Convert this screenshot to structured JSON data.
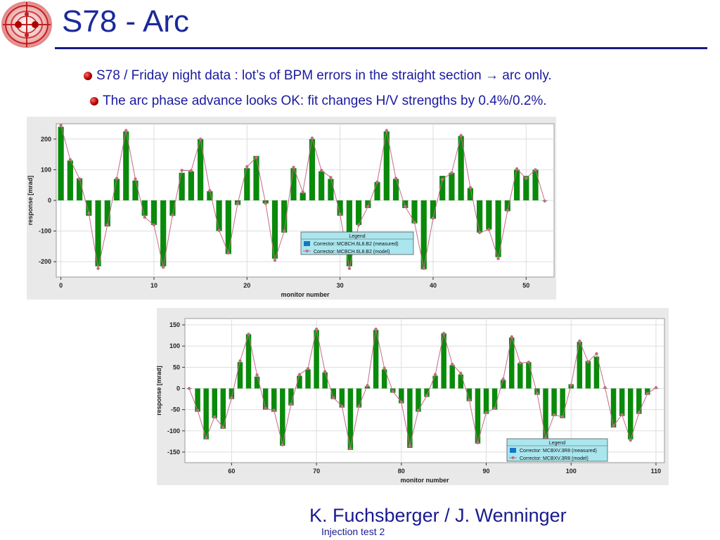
{
  "slide": {
    "title": "S78 - Arc",
    "bullets": [
      "S78 / Friday night data : lot’s of BPM errors in the straight section → arc only.",
      "The arc phase advance looks OK: fit changes H/V strengths by 0.4%/0.2%."
    ],
    "author": "K. Fuchsberger / J. Wenninger",
    "footer": "Injection test 2",
    "accent_color": "#1a2a9a",
    "logo_icon": "lhc-ring-logo"
  },
  "chart_data": [
    {
      "type": "bar",
      "xlabel": "monitor number",
      "ylabel": "response [mrad]",
      "xlim": [
        -0.5,
        53
      ],
      "ylim": [
        -250,
        250
      ],
      "xticks": [
        0,
        10,
        20,
        30,
        40,
        50
      ],
      "yticks": [
        -200,
        -100,
        0,
        100,
        200
      ],
      "grid": true,
      "legend_placement": "center-right",
      "legend_title": "Legend",
      "colors": {
        "bar": "#0a8a0a",
        "model": "#c46a88",
        "legend_bg": "#a9e6ee"
      },
      "x": [
        0,
        1,
        2,
        3,
        4,
        5,
        6,
        7,
        8,
        9,
        10,
        11,
        12,
        13,
        14,
        15,
        16,
        17,
        18,
        19,
        20,
        21,
        22,
        23,
        24,
        25,
        26,
        27,
        28,
        29,
        30,
        31,
        32,
        33,
        34,
        35,
        36,
        37,
        38,
        39,
        40,
        41,
        42,
        43,
        44,
        45,
        46,
        47,
        48,
        49,
        50,
        51,
        52
      ],
      "series": [
        {
          "name": "Corrector: MCBCH.6L8.B2 (measured)",
          "kind": "bar",
          "values": [
            240,
            130,
            72,
            -50,
            -215,
            -85,
            70,
            225,
            65,
            -50,
            -80,
            -215,
            -50,
            90,
            95,
            200,
            30,
            -100,
            -175,
            -15,
            105,
            145,
            -10,
            -190,
            -105,
            105,
            25,
            200,
            95,
            70,
            -50,
            -215,
            -80,
            -25,
            60,
            225,
            70,
            -25,
            -75,
            -225,
            -60,
            80,
            90,
            210,
            40,
            -105,
            -95,
            -185,
            -35,
            100,
            80,
            100,
            0
          ]
        },
        {
          "name": "Corrector: MCBCH.6L8.B2 (model)",
          "kind": "line",
          "values": [
            245,
            133,
            70,
            -42,
            -222,
            -80,
            72,
            228,
            70,
            -55,
            -80,
            -218,
            -48,
            98,
            97,
            200,
            32,
            -98,
            -172,
            -10,
            110,
            140,
            -10,
            -195,
            -100,
            108,
            27,
            203,
            98,
            75,
            -45,
            -222,
            -80,
            -20,
            60,
            228,
            72,
            -20,
            -72,
            -222,
            -58,
            68,
            90,
            212,
            42,
            -105,
            -95,
            -190,
            -33,
            103,
            72,
            100,
            -2
          ]
        }
      ]
    },
    {
      "type": "bar",
      "xlabel": "monitor number",
      "ylabel": "response [mrad]",
      "xlim": [
        54.5,
        111
      ],
      "ylim": [
        -175,
        165
      ],
      "xticks": [
        60,
        70,
        80,
        90,
        100,
        110
      ],
      "yticks": [
        -150,
        -100,
        -50,
        0,
        50,
        100,
        150
      ],
      "grid": true,
      "legend_placement": "bottom-right",
      "legend_title": "Legend",
      "colors": {
        "bar": "#0a8a0a",
        "model": "#c46a88",
        "legend_bg": "#a9e6ee"
      },
      "x": [
        55,
        56,
        57,
        58,
        59,
        60,
        61,
        62,
        63,
        64,
        65,
        66,
        67,
        68,
        69,
        70,
        71,
        72,
        73,
        74,
        75,
        76,
        77,
        78,
        79,
        80,
        81,
        82,
        83,
        84,
        85,
        86,
        87,
        88,
        89,
        90,
        91,
        92,
        93,
        94,
        95,
        96,
        97,
        98,
        99,
        100,
        101,
        102,
        103,
        104,
        105,
        106,
        107,
        108,
        109,
        110
      ],
      "series": [
        {
          "name": "Corrector: MCBXV.3R8 (measured)",
          "kind": "bar",
          "values": [
            0,
            -55,
            -120,
            -70,
            -95,
            -25,
            62,
            128,
            28,
            -50,
            -55,
            -135,
            -40,
            30,
            45,
            138,
            38,
            -25,
            -45,
            -145,
            -45,
            5,
            138,
            45,
            -10,
            -35,
            -140,
            -55,
            -20,
            30,
            130,
            55,
            33,
            -30,
            -130,
            -60,
            -50,
            20,
            120,
            60,
            62,
            -15,
            -120,
            -65,
            -70,
            10,
            110,
            65,
            75,
            0,
            -92,
            -65,
            -120,
            -60,
            -15,
            0
          ],
          "model": [
            0,
            -52,
            -117,
            -67,
            -92,
            -22,
            65,
            128,
            32,
            -47,
            -52,
            -133,
            -37,
            33,
            47,
            140,
            40,
            -22,
            -42,
            -142,
            -42,
            7,
            140,
            48,
            -7,
            -32,
            -135,
            -52,
            -17,
            33,
            130,
            57,
            36,
            -27,
            -128,
            -57,
            -47,
            22,
            122,
            60,
            62,
            -12,
            -117,
            -62,
            -67,
            8,
            112,
            63,
            82,
            2,
            -88,
            -62,
            -122,
            -57,
            -12,
            2
          ]
        },
        {
          "name": "Corrector: MCBXV.3R8 (model)",
          "kind": "line"
        }
      ]
    }
  ]
}
